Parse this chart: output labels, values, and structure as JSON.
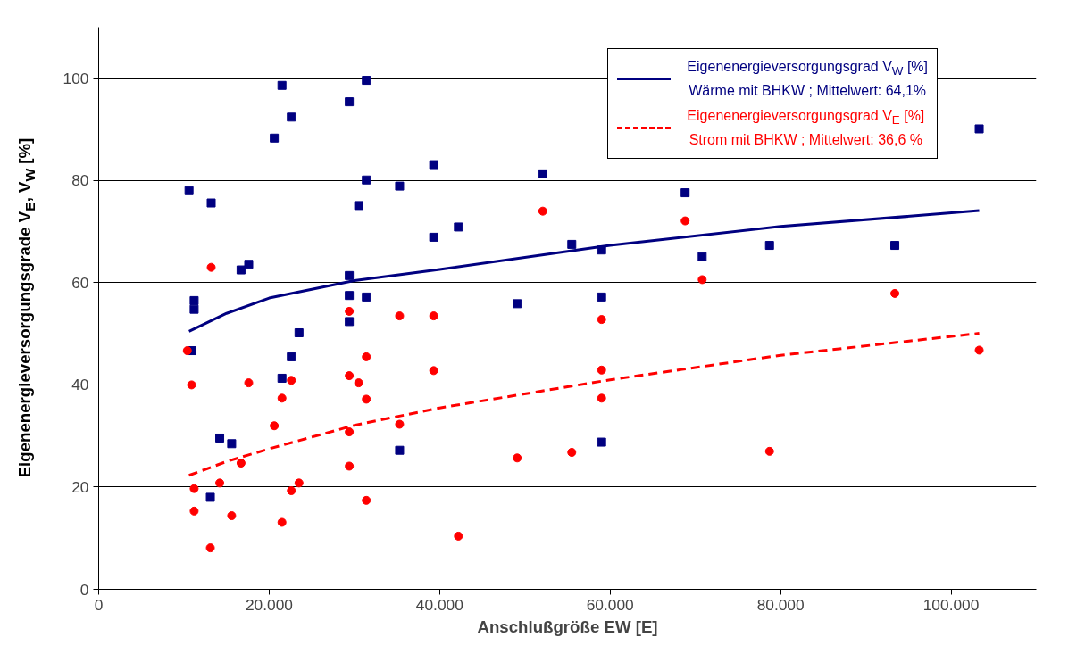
{
  "chart_data": {
    "type": "scatter",
    "xlabel": "Anschlußgröße EW [E]",
    "ylabel": "Eigenenergieversorgungsgrade V$_{E}$, V$_{W}$ [%]",
    "xlim": [
      0,
      110000
    ],
    "xticks": [
      {
        "value": 0,
        "label": "0"
      },
      {
        "value": 20000,
        "label": "20.000"
      },
      {
        "value": 40000,
        "label": "40.000"
      },
      {
        "value": 60000,
        "label": "60.000"
      },
      {
        "value": 80000,
        "label": "80.000"
      },
      {
        "value": 100000,
        "label": "100.000"
      }
    ],
    "ylim": [
      0,
      110
    ],
    "yticks": [
      0,
      20,
      40,
      60,
      80,
      100
    ],
    "grid": "y",
    "legend": "top right",
    "series": [
      {
        "marker": "square",
        "color": "#000080",
        "x": [
          21500,
          31400,
          29400,
          22600,
          20600,
          31400,
          10600,
          13200,
          30500,
          17600,
          16700,
          29400,
          11200,
          11200,
          29400,
          31400,
          29400,
          23500,
          10900,
          22600,
          21500,
          14200,
          15600,
          13100,
          103300,
          35300,
          39300,
          52100,
          68800,
          39300,
          42200,
          55500,
          59000,
          70800,
          78700,
          93400,
          49100,
          59000,
          35300,
          59000
        ],
        "values": [
          98.6,
          99.6,
          95.4,
          92.4,
          88.3,
          80.1,
          78.0,
          75.6,
          75.1,
          63.6,
          62.5,
          61.4,
          56.5,
          54.8,
          57.5,
          57.2,
          52.4,
          50.2,
          46.7,
          45.5,
          41.3,
          29.6,
          28.5,
          18.0,
          90.1,
          78.9,
          83.1,
          81.3,
          77.6,
          68.9,
          70.9,
          67.5,
          66.4,
          65.1,
          67.3,
          67.3,
          55.9,
          57.2,
          27.2,
          28.8
        ]
      },
      {
        "marker": "circle",
        "color": "#ff0000",
        "x": [
          13200,
          29400,
          10400,
          10900,
          17600,
          22600,
          21500,
          29400,
          30500,
          31400,
          31400,
          20600,
          29400,
          29400,
          16700,
          14200,
          11200,
          23500,
          22600,
          31400,
          11200,
          15600,
          21500,
          13100,
          52100,
          68800,
          70800,
          93400,
          35300,
          39300,
          59000,
          103300,
          39300,
          59000,
          59000,
          35300,
          49100,
          55500,
          78700,
          42200
        ],
        "values": [
          63.0,
          54.4,
          46.7,
          40.0,
          40.4,
          40.9,
          37.4,
          41.8,
          40.4,
          45.5,
          37.2,
          32.0,
          30.8,
          24.1,
          24.7,
          20.8,
          19.7,
          20.8,
          19.3,
          17.4,
          15.3,
          14.4,
          13.1,
          8.1,
          74.0,
          72.1,
          60.6,
          57.9,
          53.5,
          53.5,
          52.8,
          46.8,
          42.8,
          42.9,
          37.4,
          32.3,
          25.7,
          26.8,
          27.0,
          10.4
        ]
      },
      {
        "type": "line",
        "line_style": "solid",
        "name": "Eigenenergieversorgungsgrad V$_{W}$ [%]\nWärme mit BHKW ; Mittelwert: 64,1%",
        "color": "#000080",
        "x": [
          10600,
          15000,
          20000,
          30000,
          40000,
          60000,
          80000,
          103300
        ],
        "values": [
          50.5,
          54.0,
          57.0,
          60.4,
          62.6,
          67.3,
          71.0,
          74.1
        ]
      },
      {
        "type": "line",
        "line_style": "dashed",
        "name": "Eigenenergieversorgungsgrad V$_{E}$ [%]\nStrom mit BHKW ; Mittelwert: 36,6 %",
        "color": "#ff0000",
        "x": [
          10600,
          15000,
          20000,
          30000,
          40000,
          60000,
          80000,
          103300
        ],
        "values": [
          22.3,
          25.0,
          27.5,
          32.1,
          35.5,
          41.0,
          45.8,
          50.1
        ]
      }
    ]
  }
}
